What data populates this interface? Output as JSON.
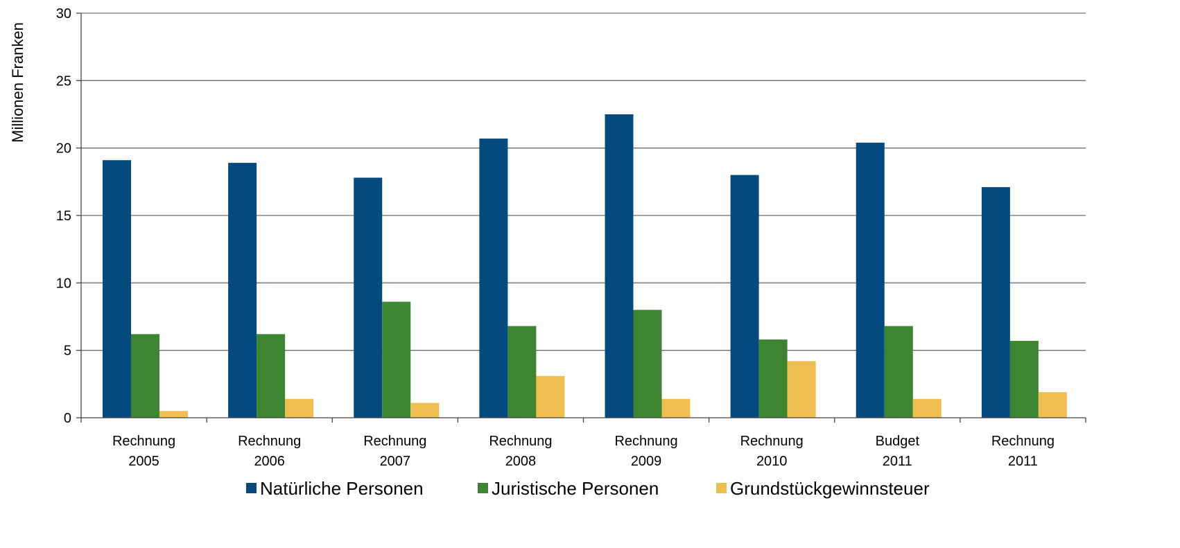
{
  "chart_data": {
    "type": "bar",
    "ylabel": "Millionen Franken",
    "xlabel": "",
    "ylim": [
      0,
      30
    ],
    "yticks": [
      0,
      5,
      10,
      15,
      20,
      25,
      30
    ],
    "grid": true,
    "legend_position": "bottom",
    "categories": [
      [
        "Rechnung",
        "2005"
      ],
      [
        "Rechnung",
        "2006"
      ],
      [
        "Rechnung",
        "2007"
      ],
      [
        "Rechnung",
        "2008"
      ],
      [
        "Rechnung",
        "2009"
      ],
      [
        "Rechnung",
        "2010"
      ],
      [
        "Budget",
        "2011"
      ],
      [
        "Rechnung",
        "2011"
      ]
    ],
    "series": [
      {
        "name": "Natürliche Personen",
        "color": "#044A7F",
        "values": [
          19.1,
          18.9,
          17.8,
          20.7,
          22.5,
          18.0,
          20.4,
          17.1
        ]
      },
      {
        "name": "Juristische Personen",
        "color": "#3D8530",
        "values": [
          6.2,
          6.2,
          8.6,
          6.8,
          8.0,
          5.8,
          6.8,
          5.7
        ]
      },
      {
        "name": "Grundstückgewinnsteuer",
        "color": "#EEBE50",
        "values": [
          0.5,
          1.4,
          1.1,
          3.1,
          1.4,
          4.2,
          1.4,
          1.9
        ]
      }
    ]
  }
}
